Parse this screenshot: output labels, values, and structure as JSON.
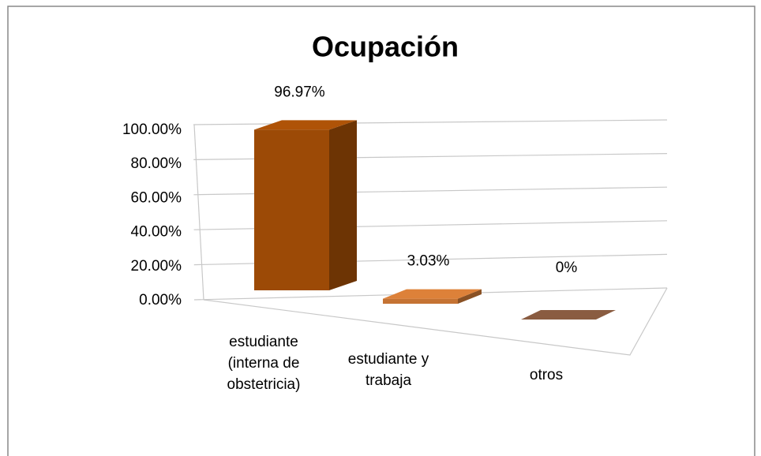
{
  "chart_data": {
    "type": "bar3d",
    "title": "Ocupación",
    "categories": [
      "estudiante (interna de obstetricia)",
      "estudiante y trabaja",
      "otros"
    ],
    "values": [
      96.97,
      3.03,
      0
    ],
    "value_labels": [
      "96.97%",
      "3.03%",
      "0%"
    ],
    "colors": [
      "#9c4a06",
      "#c57333",
      "#7b523a"
    ],
    "ylim": [
      0,
      100
    ],
    "yticks": [
      {
        "value": 0,
        "label": "0.00%"
      },
      {
        "value": 20,
        "label": "20.00%"
      },
      {
        "value": 40,
        "label": "40.00%"
      },
      {
        "value": 60,
        "label": "60.00%"
      },
      {
        "value": 80,
        "label": "80.00%"
      },
      {
        "value": 100,
        "label": "100.00%"
      }
    ],
    "grid": true
  }
}
